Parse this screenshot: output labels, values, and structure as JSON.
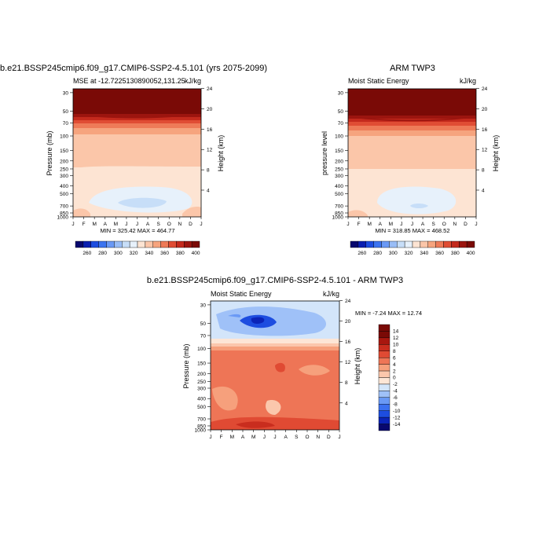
{
  "chart_data": [
    {
      "type": "contour",
      "title": "b.e21.BSSP245cmip6.f09_g17.CMIP6-SSP2-4.5.101 (yrs 2075-2099)",
      "left_label": "MSE at -12.7225130890052,131.25",
      "units": "kJ/kg",
      "ylabel": "Pressure (mb)",
      "y2label": "Height (km)",
      "x_ticks": [
        "J",
        "F",
        "M",
        "A",
        "M",
        "J",
        "J",
        "A",
        "S",
        "O",
        "N",
        "D",
        "J"
      ],
      "pressure_ticks": [
        "30",
        "50",
        "70",
        "100",
        "150",
        "200",
        "250",
        "300",
        "400",
        "500",
        "700",
        "850",
        "1000"
      ],
      "height_ticks": [
        "24",
        "20",
        "16",
        "12",
        "8",
        "4"
      ],
      "stats": "MIN = 325.42 MAX = 464.77",
      "min": 325.42,
      "max": 464.77,
      "colorbar_labels": [
        "260",
        "280",
        "300",
        "320",
        "340",
        "360",
        "380",
        "400"
      ]
    },
    {
      "type": "contour",
      "title": "ARM TWP3",
      "left_label": "Moist Static Energy",
      "units": "kJ/kg",
      "ylabel": "pressure level",
      "y2label": "Height (km)",
      "x_ticks": [
        "J",
        "F",
        "M",
        "A",
        "M",
        "J",
        "J",
        "A",
        "S",
        "O",
        "N",
        "D",
        "J"
      ],
      "pressure_ticks": [
        "30",
        "50",
        "70",
        "100",
        "150",
        "200",
        "250",
        "300",
        "400",
        "500",
        "700",
        "850",
        "1000"
      ],
      "height_ticks": [
        "24",
        "20",
        "16",
        "12",
        "8",
        "4"
      ],
      "stats": "MIN = 318.85 MAX = 468.52",
      "min": 318.85,
      "max": 468.52,
      "colorbar_labels": [
        "260",
        "280",
        "300",
        "320",
        "340",
        "360",
        "380",
        "400"
      ]
    },
    {
      "type": "contour",
      "title": "b.e21.BSSP245cmip6.f09_g17.CMIP6-SSP2-4.5.101 - ARM TWP3",
      "left_label": "Moist Static Energy",
      "units": "kJ/kg",
      "ylabel": "Pressure (mb)",
      "y2label": "Height (km)",
      "x_ticks": [
        "J",
        "F",
        "M",
        "A",
        "M",
        "J",
        "J",
        "A",
        "S",
        "O",
        "N",
        "D",
        "J"
      ],
      "pressure_ticks": [
        "30",
        "50",
        "70",
        "100",
        "150",
        "200",
        "250",
        "300",
        "400",
        "500",
        "700",
        "850",
        "1000"
      ],
      "height_ticks": [
        "24",
        "20",
        "16",
        "12",
        "8",
        "4"
      ],
      "stats": "MIN =  -7.24 MAX =  12.74",
      "min": -7.24,
      "max": 12.74,
      "colorbar_labels": [
        "14",
        "12",
        "10",
        "8",
        "6",
        "4",
        "2",
        "0",
        "-2",
        "-4",
        "-6",
        "-8",
        "-10",
        "-12",
        "-14"
      ]
    }
  ],
  "colors": {
    "abs_scale": [
      "#08086e",
      "#0a1fb0",
      "#1d4de0",
      "#3c74f0",
      "#6a99f5",
      "#99bdf6",
      "#c7def8",
      "#e7f1fb",
      "#fde4d3",
      "#fbc6a9",
      "#f6a47e",
      "#ee7b58",
      "#e04d34",
      "#c42a1d",
      "#9c150f",
      "#7a0a06"
    ],
    "diff_scale": [
      "#08086e",
      "#0b24b8",
      "#1d4de0",
      "#3b70f0",
      "#6a99f5",
      "#9fc1f8",
      "#d3e5fa",
      "#fde6d6",
      "#fbc7ac",
      "#f6a07c",
      "#ee7556",
      "#e04a33",
      "#c92d1e",
      "#a8170f",
      "#7a0a06"
    ]
  }
}
